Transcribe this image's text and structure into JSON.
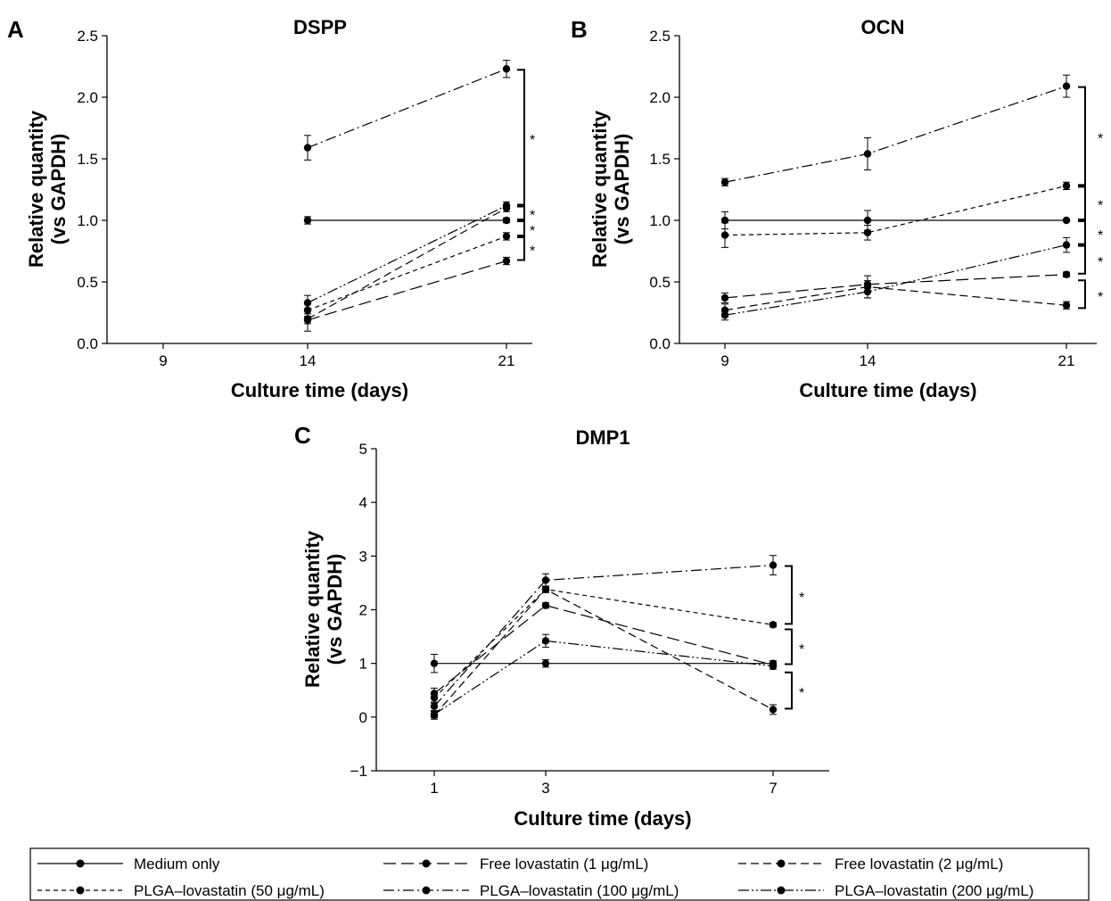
{
  "legend": [
    {
      "label": "Medium only",
      "dash": "solid"
    },
    {
      "label": "Free lovastatin (1 μg/mL)",
      "dash": "longdash"
    },
    {
      "label": "Free lovastatin (2 μg/mL)",
      "dash": "dash"
    },
    {
      "label": "PLGA–lovastatin (50 μg/mL)",
      "dash": "shortdash"
    },
    {
      "label": "PLGA–lovastatin (100 μg/mL)",
      "dash": "dashdot"
    },
    {
      "label": "PLGA–lovastatin (200 μg/mL)",
      "dash": "dashdotdot"
    }
  ],
  "chart_data": [
    {
      "panel": "A",
      "type": "line",
      "title": "DSPP",
      "xlabel": "Culture time (days)",
      "ylabel": [
        "Relative quantity",
        "(vs GAPDH)"
      ],
      "x_ticks": [
        "9",
        "14",
        "21"
      ],
      "y_ticks": [
        "0.0",
        "0.5",
        "1.0",
        "1.5",
        "2.0",
        "2.5"
      ],
      "ylim": [
        0,
        2.5
      ],
      "grid": false,
      "series": [
        {
          "name": "Medium only",
          "x": [
            "14",
            "21"
          ],
          "values": [
            1.0,
            1.0
          ],
          "err": [
            0.03,
            0.02
          ]
        },
        {
          "name": "Free lovastatin (1 μg/mL)",
          "x": [
            "14",
            "21"
          ],
          "values": [
            0.19,
            0.67
          ],
          "err": [
            0.09,
            0.03
          ]
        },
        {
          "name": "Free lovastatin (2 μg/mL)",
          "x": [
            "14",
            "21"
          ],
          "values": [
            0.2,
            1.1
          ],
          "err": [
            0.04,
            0.03
          ]
        },
        {
          "name": "PLGA–lovastatin (50 μg/mL)",
          "x": [
            "14",
            "21"
          ],
          "values": [
            0.27,
            0.87
          ],
          "err": [
            0.05,
            0.03
          ]
        },
        {
          "name": "PLGA–lovastatin (100 μg/mL)",
          "x": [
            "14",
            "21"
          ],
          "values": [
            1.59,
            2.23
          ],
          "err": [
            0.1,
            0.07
          ]
        },
        {
          "name": "PLGA–lovastatin (200 μg/mL)",
          "x": [
            "14",
            "21"
          ],
          "values": [
            0.33,
            1.12
          ],
          "err": [
            0.06,
            0.03
          ]
        }
      ],
      "significance": [
        {
          "from": 2.23,
          "to": 1.12,
          "label": "*"
        },
        {
          "from": 1.12,
          "to": 1.0,
          "label": "*"
        },
        {
          "from": 1.0,
          "to": 0.87,
          "label": "*"
        },
        {
          "from": 0.87,
          "to": 0.67,
          "label": "*"
        }
      ]
    },
    {
      "panel": "B",
      "type": "line",
      "title": "OCN",
      "xlabel": "Culture time (days)",
      "ylabel": [
        "Relative quantity",
        "(vs GAPDH)"
      ],
      "x_ticks": [
        "9",
        "14",
        "21"
      ],
      "y_ticks": [
        "0.0",
        "0.5",
        "1.0",
        "1.5",
        "2.0",
        "2.5"
      ],
      "ylim": [
        0,
        2.5
      ],
      "grid": false,
      "series": [
        {
          "name": "Medium only",
          "x": [
            "9",
            "14",
            "21"
          ],
          "values": [
            1.0,
            1.0,
            1.0
          ],
          "err": [
            0.07,
            0.08,
            0.01
          ]
        },
        {
          "name": "Free lovastatin (1 μg/mL)",
          "x": [
            "9",
            "14",
            "21"
          ],
          "values": [
            0.37,
            0.48,
            0.56
          ],
          "err": [
            0.04,
            0.03,
            0.02
          ]
        },
        {
          "name": "Free lovastatin (2 μg/mL)",
          "x": [
            "9",
            "14",
            "21"
          ],
          "values": [
            0.27,
            0.46,
            0.31
          ],
          "err": [
            0.05,
            0.09,
            0.03
          ]
        },
        {
          "name": "PLGA–lovastatin (50 μg/mL)",
          "x": [
            "9",
            "14",
            "21"
          ],
          "values": [
            0.88,
            0.9,
            1.28
          ],
          "err": [
            0.1,
            0.06,
            0.03
          ]
        },
        {
          "name": "PLGA–lovastatin (100 μg/mL)",
          "x": [
            "9",
            "14",
            "21"
          ],
          "values": [
            1.31,
            1.54,
            2.09
          ],
          "err": [
            0.03,
            0.13,
            0.09
          ]
        },
        {
          "name": "PLGA–lovastatin (200 μg/mL)",
          "x": [
            "9",
            "14",
            "21"
          ],
          "values": [
            0.23,
            0.42,
            0.8
          ],
          "err": [
            0.04,
            0.05,
            0.06
          ]
        }
      ],
      "significance": [
        {
          "from": 2.09,
          "to": 1.28,
          "label": "*"
        },
        {
          "from": 1.28,
          "to": 1.0,
          "label": "*"
        },
        {
          "from": 1.0,
          "to": 0.8,
          "label": "*"
        },
        {
          "from": 0.8,
          "to": 0.56,
          "label": "*"
        },
        {
          "from": 0.52,
          "to": 0.28,
          "label": "*"
        }
      ]
    },
    {
      "panel": "C",
      "type": "line",
      "title": "DMP1",
      "xlabel": "Culture time (days)",
      "ylabel": [
        "Relative quantity",
        "(vs GAPDH)"
      ],
      "x_ticks": [
        "1",
        "3",
        "7"
      ],
      "y_ticks": [
        "−1",
        "0",
        "1",
        "2",
        "3",
        "4",
        "5"
      ],
      "ylim": [
        -1,
        5
      ],
      "grid": false,
      "series": [
        {
          "name": "Medium only",
          "x": [
            "1",
            "3",
            "7"
          ],
          "values": [
            1.0,
            1.0,
            1.0
          ],
          "err": [
            0.17,
            0.07,
            0.05
          ]
        },
        {
          "name": "Free lovastatin (1 μg/mL)",
          "x": [
            "1",
            "3",
            "7"
          ],
          "values": [
            0.44,
            2.08,
            0.97
          ],
          "err": [
            0.1,
            0.05,
            0.05
          ]
        },
        {
          "name": "Free lovastatin (2 μg/mL)",
          "x": [
            "1",
            "3",
            "7"
          ],
          "values": [
            0.03,
            2.38,
            0.14
          ],
          "err": [
            0.07,
            0.06,
            0.09
          ]
        },
        {
          "name": "PLGA–lovastatin (50 μg/mL)",
          "x": [
            "1",
            "3",
            "7"
          ],
          "values": [
            0.36,
            2.38,
            1.72
          ],
          "err": [
            0.1,
            0.05,
            0.04
          ]
        },
        {
          "name": "PLGA–lovastatin (100 μg/mL)",
          "x": [
            "1",
            "3",
            "7"
          ],
          "values": [
            0.2,
            2.55,
            2.83
          ],
          "err": [
            0.08,
            0.12,
            0.18
          ]
        },
        {
          "name": "PLGA–lovastatin (200 μg/mL)",
          "x": [
            "1",
            "3",
            "7"
          ],
          "values": [
            0.05,
            1.42,
            0.95
          ],
          "err": [
            0.06,
            0.12,
            0.06
          ]
        }
      ],
      "significance": [
        {
          "from": 2.83,
          "to": 1.72,
          "label": "*"
        },
        {
          "from": 1.65,
          "to": 0.97,
          "label": "*"
        },
        {
          "from": 0.85,
          "to": 0.14,
          "label": "*"
        }
      ]
    }
  ]
}
